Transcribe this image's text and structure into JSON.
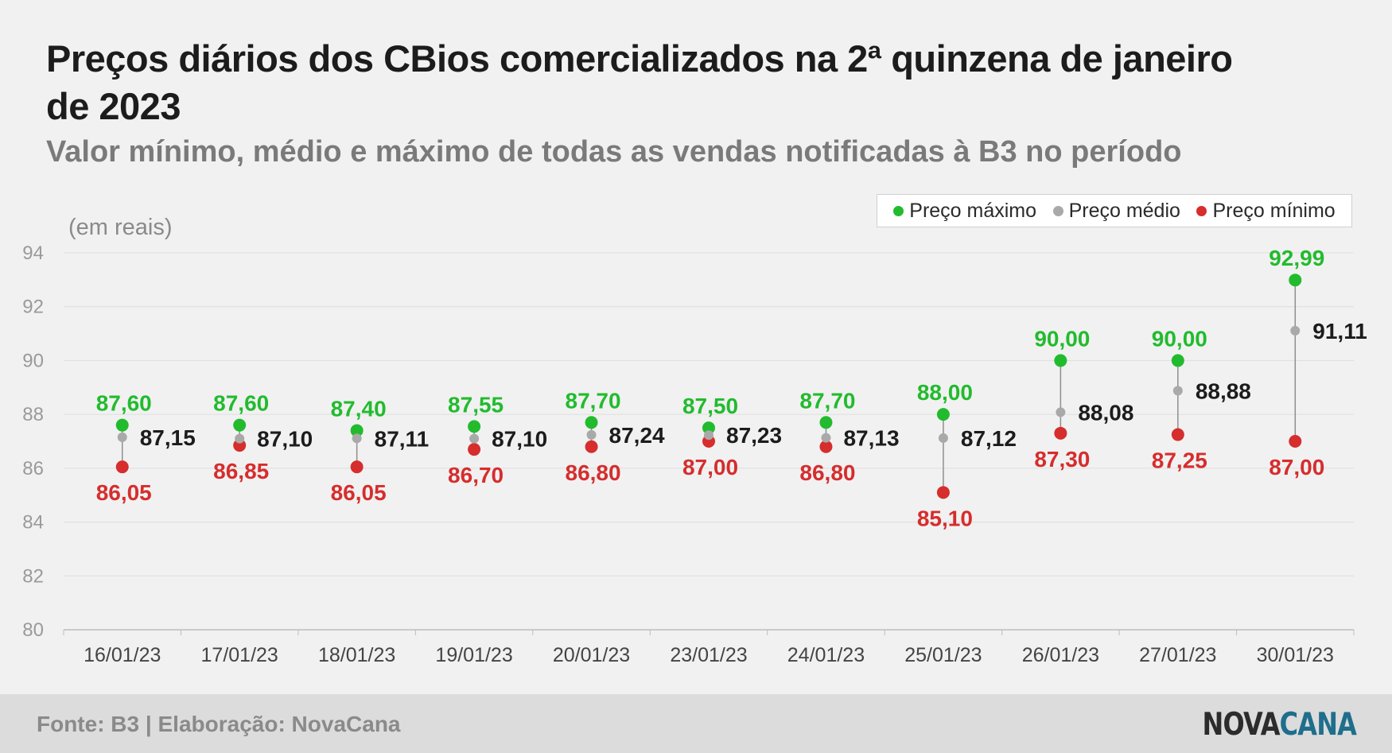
{
  "title": "Preços diários dos CBios comercializados na 2ª quinzena de janeiro de 2023",
  "subtitle": "Valor mínimo, médio e máximo de todas as vendas notificadas à B3 no período",
  "unit_label": "(em reais)",
  "colors": {
    "max": "#22bb2e",
    "avg": "#a9a9a9",
    "min": "#d62d2d"
  },
  "chart_data": {
    "type": "scatter",
    "categories": [
      "16/01/23",
      "17/01/23",
      "18/01/23",
      "19/01/23",
      "20/01/23",
      "23/01/23",
      "24/01/23",
      "25/01/23",
      "26/01/23",
      "27/01/23",
      "30/01/23"
    ],
    "series": [
      {
        "name": "Preço máximo",
        "values": [
          87.6,
          87.6,
          87.4,
          87.55,
          87.7,
          87.5,
          87.7,
          88.0,
          90.0,
          90.0,
          92.99
        ],
        "labels": [
          "87,60",
          "87,60",
          "87,40",
          "87,55",
          "87,70",
          "87,50",
          "87,70",
          "88,00",
          "90,00",
          "90,00",
          "92,99"
        ]
      },
      {
        "name": "Preço médio",
        "values": [
          87.15,
          87.1,
          87.11,
          87.1,
          87.24,
          87.23,
          87.13,
          87.12,
          88.08,
          88.88,
          91.11
        ],
        "labels": [
          "87,15",
          "87,10",
          "87,11",
          "87,10",
          "87,24",
          "87,23",
          "87,13",
          "87,12",
          "88,08",
          "88,88",
          "91,11"
        ]
      },
      {
        "name": "Preço mínimo",
        "values": [
          86.05,
          86.85,
          86.05,
          86.7,
          86.8,
          87.0,
          86.8,
          85.1,
          87.3,
          87.25,
          87.0
        ],
        "labels": [
          "86,05",
          "86,85",
          "86,05",
          "86,70",
          "86,80",
          "87,00",
          "86,80",
          "85,10",
          "87,30",
          "87,25",
          "87,00"
        ]
      }
    ],
    "ylim": [
      80,
      94
    ],
    "yticks": [
      80,
      82,
      84,
      86,
      88,
      90,
      92,
      94
    ],
    "legend_position": "top-right",
    "grid": true
  },
  "footer": {
    "source": "Fonte: B3 | Elaboração: NovaCana",
    "brand_part1": "NOVA",
    "brand_part2": "CANA"
  }
}
